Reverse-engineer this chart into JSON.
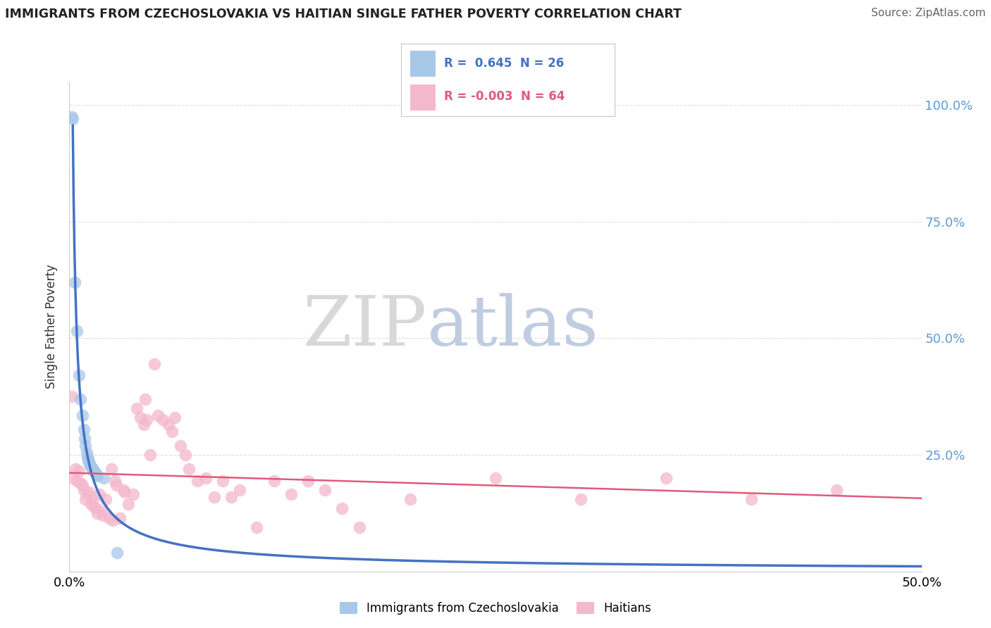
{
  "title": "IMMIGRANTS FROM CZECHOSLOVAKIA VS HAITIAN SINGLE FATHER POVERTY CORRELATION CHART",
  "source": "Source: ZipAtlas.com",
  "ylabel": "Single Father Poverty",
  "blue_line_color": "#4472c4",
  "pink_line_color": "#e05a7a",
  "blue_scatter_color": "#a8c8e8",
  "pink_scatter_color": "#f4b8cc",
  "blue_dots": [
    [
      0.0015,
      0.975
    ],
    [
      0.002,
      0.97
    ],
    [
      0.003,
      0.62
    ],
    [
      0.0045,
      0.515
    ],
    [
      0.0055,
      0.42
    ],
    [
      0.0065,
      0.37
    ],
    [
      0.0075,
      0.335
    ],
    [
      0.0085,
      0.305
    ],
    [
      0.009,
      0.285
    ],
    [
      0.0095,
      0.27
    ],
    [
      0.01,
      0.255
    ],
    [
      0.0105,
      0.245
    ],
    [
      0.011,
      0.24
    ],
    [
      0.0115,
      0.235
    ],
    [
      0.012,
      0.23
    ],
    [
      0.0125,
      0.225
    ],
    [
      0.013,
      0.223
    ],
    [
      0.0135,
      0.22
    ],
    [
      0.014,
      0.218
    ],
    [
      0.0145,
      0.215
    ],
    [
      0.015,
      0.213
    ],
    [
      0.0155,
      0.21
    ],
    [
      0.016,
      0.208
    ],
    [
      0.0165,
      0.205
    ],
    [
      0.02,
      0.2
    ],
    [
      0.028,
      0.04
    ]
  ],
  "pink_dots": [
    [
      0.0015,
      0.375
    ],
    [
      0.0025,
      0.2
    ],
    [
      0.0035,
      0.22
    ],
    [
      0.0045,
      0.195
    ],
    [
      0.0055,
      0.215
    ],
    [
      0.0065,
      0.19
    ],
    [
      0.0075,
      0.185
    ],
    [
      0.0085,
      0.175
    ],
    [
      0.0095,
      0.155
    ],
    [
      0.0105,
      0.165
    ],
    [
      0.0115,
      0.17
    ],
    [
      0.0125,
      0.145
    ],
    [
      0.0135,
      0.155
    ],
    [
      0.0145,
      0.14
    ],
    [
      0.0155,
      0.135
    ],
    [
      0.0165,
      0.125
    ],
    [
      0.0175,
      0.165
    ],
    [
      0.0185,
      0.13
    ],
    [
      0.0195,
      0.12
    ],
    [
      0.0215,
      0.155
    ],
    [
      0.0235,
      0.115
    ],
    [
      0.0245,
      0.22
    ],
    [
      0.0255,
      0.11
    ],
    [
      0.0265,
      0.195
    ],
    [
      0.0275,
      0.185
    ],
    [
      0.0295,
      0.115
    ],
    [
      0.0315,
      0.175
    ],
    [
      0.0325,
      0.17
    ],
    [
      0.0345,
      0.145
    ],
    [
      0.0375,
      0.165
    ],
    [
      0.0395,
      0.35
    ],
    [
      0.0415,
      0.33
    ],
    [
      0.0435,
      0.315
    ],
    [
      0.0445,
      0.37
    ],
    [
      0.0455,
      0.325
    ],
    [
      0.0475,
      0.25
    ],
    [
      0.05,
      0.445
    ],
    [
      0.052,
      0.335
    ],
    [
      0.055,
      0.325
    ],
    [
      0.058,
      0.315
    ],
    [
      0.06,
      0.3
    ],
    [
      0.062,
      0.33
    ],
    [
      0.065,
      0.27
    ],
    [
      0.068,
      0.25
    ],
    [
      0.07,
      0.22
    ],
    [
      0.075,
      0.195
    ],
    [
      0.08,
      0.2
    ],
    [
      0.085,
      0.16
    ],
    [
      0.09,
      0.195
    ],
    [
      0.095,
      0.16
    ],
    [
      0.1,
      0.175
    ],
    [
      0.11,
      0.095
    ],
    [
      0.12,
      0.195
    ],
    [
      0.13,
      0.165
    ],
    [
      0.14,
      0.195
    ],
    [
      0.15,
      0.175
    ],
    [
      0.16,
      0.135
    ],
    [
      0.17,
      0.095
    ],
    [
      0.2,
      0.155
    ],
    [
      0.25,
      0.2
    ],
    [
      0.3,
      0.155
    ],
    [
      0.35,
      0.2
    ],
    [
      0.4,
      0.155
    ],
    [
      0.45,
      0.175
    ]
  ],
  "xlim": [
    0.0,
    0.5
  ],
  "ylim": [
    0.0,
    1.05
  ],
  "ytick_values": [
    0.0,
    0.25,
    0.5,
    0.75,
    1.0
  ],
  "ytick_labels": [
    "",
    "25.0%",
    "50.0%",
    "75.0%",
    "100.0%"
  ],
  "xtick_values": [
    0.0,
    0.5
  ],
  "xtick_labels": [
    "0.0%",
    "50.0%"
  ],
  "watermark_zip": "ZIP",
  "watermark_atlas": "atlas",
  "background_color": "#ffffff",
  "grid_color": "#e0e0e0",
  "right_tick_color": "#5b9bd5",
  "legend_box_color": "#cccccc"
}
